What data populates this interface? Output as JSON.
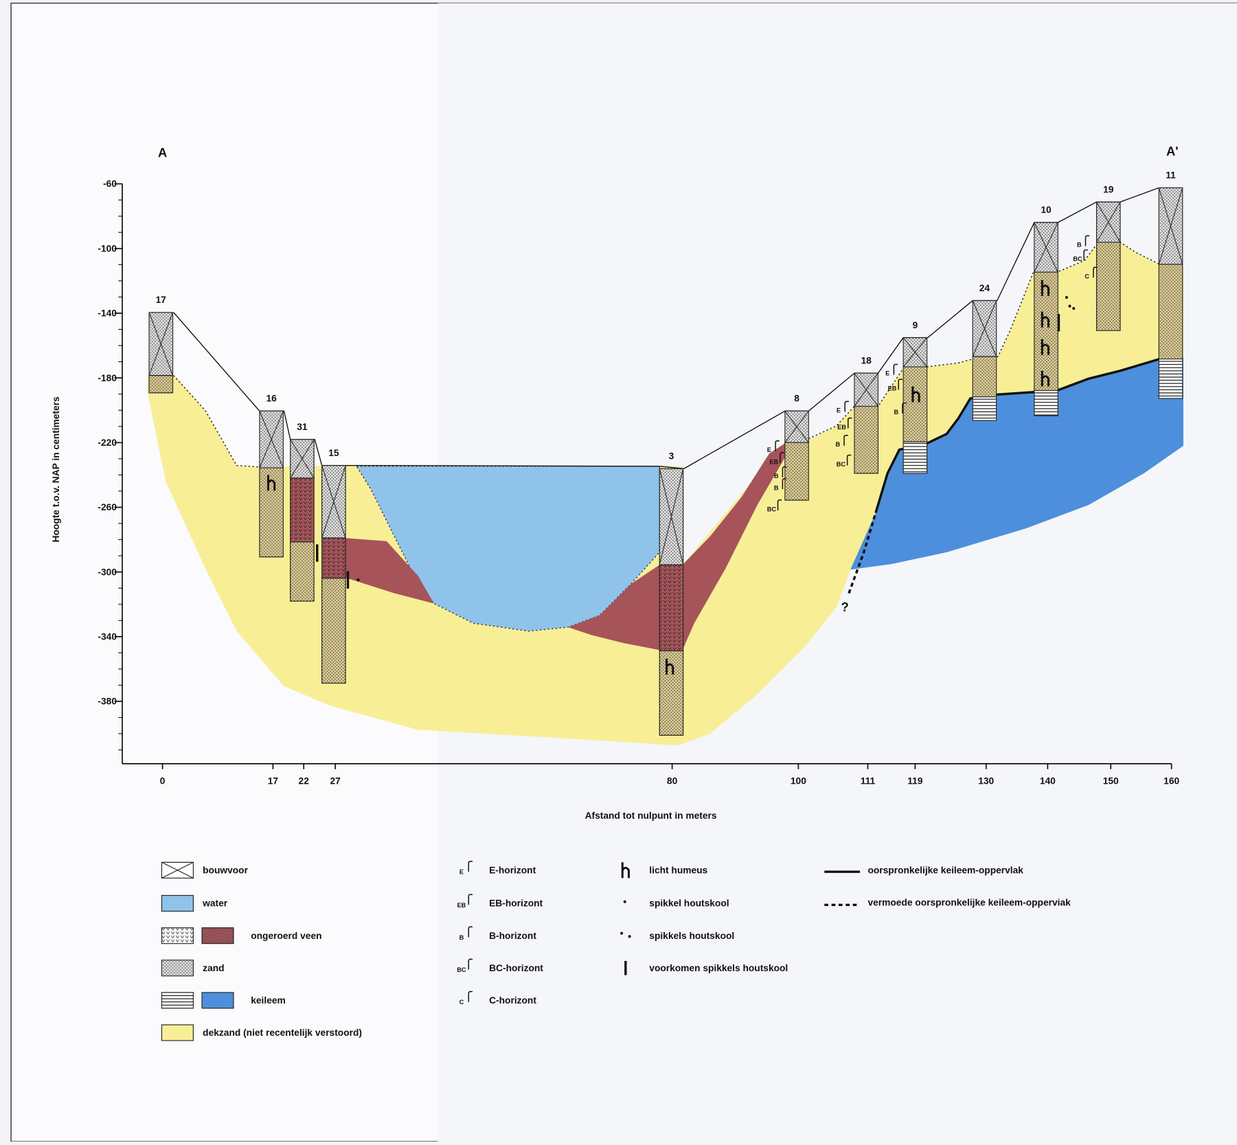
{
  "section_labels": {
    "start": "A",
    "end": "A'"
  },
  "y_axis": {
    "title": "Hoogte t.o.v. NAP in centimeters",
    "ticks": [
      "-60",
      "-100",
      "-140",
      "-180",
      "-220",
      "-260",
      "-300",
      "-340",
      "-380"
    ]
  },
  "x_axis": {
    "title": "Afstand tot nulpunt in meters",
    "ticks": [
      "0",
      "17",
      "22",
      "27",
      "80",
      "100",
      "111",
      "119",
      "130",
      "140",
      "150",
      "160"
    ]
  },
  "boreholes": [
    "17",
    "16",
    "31",
    "15",
    "3",
    "8",
    "18",
    "9",
    "24",
    "10",
    "19",
    "11"
  ],
  "horizon_labels": [
    "E",
    "EB",
    "B",
    "B",
    "BC",
    "E",
    "EB",
    "B",
    "BC",
    "E",
    "EB",
    "B",
    "B",
    "BC",
    "C"
  ],
  "unknown_marker": "?",
  "legend": {
    "soils": [
      "bouwvoor",
      "water",
      "ongeroerd veen",
      "zand",
      "keileem",
      "dekzand (niet recentelijk verstoord)"
    ],
    "horizons": [
      "E-horizont",
      "EB-horizont",
      "B-horizont",
      "BC-horizont",
      "C-horizont"
    ],
    "horizon_symbols": [
      "E",
      "EB",
      "B",
      "BC",
      "C"
    ],
    "features": [
      "licht humeus",
      "spikkel houtskool",
      "spikkels houtskool",
      "voorkomen spikkels houtskool"
    ],
    "lines": [
      "oorspronkelijke keileem-oppervlak",
      "vermoede oorspronkelijke keileem-opperviak"
    ]
  }
}
